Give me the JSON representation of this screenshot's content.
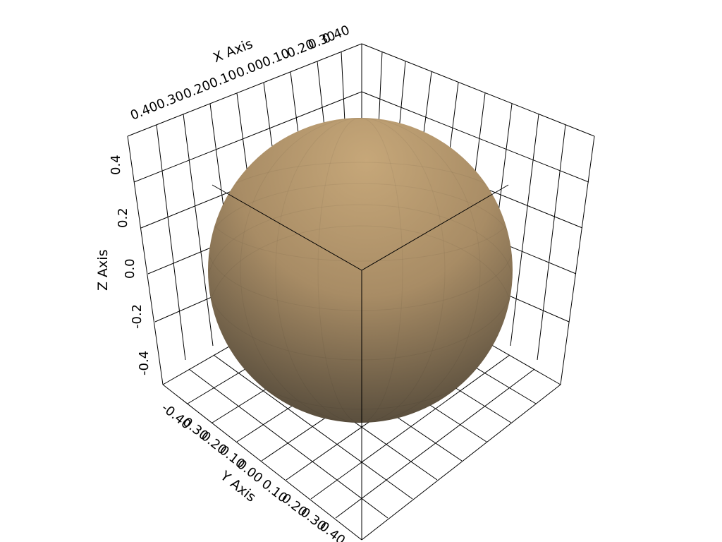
{
  "axes": {
    "x_title": "X Axis",
    "y_title": "Y Axis",
    "z_title": "Z Axis",
    "x_ticks": [
      "0.40",
      "0.30",
      "0.20",
      "0.10",
      "0.00",
      "0.10",
      "0.20",
      "0.30",
      "0.40"
    ],
    "y_ticks": [
      "-0.40",
      "0.30",
      "0.20",
      "0.10",
      "0.00",
      "0.10",
      "0.20",
      "0.30",
      "0.40"
    ],
    "z_ticks": [
      "0.4",
      "0.2",
      "0.0",
      "-0.2",
      "-0.4"
    ]
  },
  "colors": {
    "background": "#ffffff",
    "sphere_light": "#c6a779",
    "sphere_mid": "#a88c65",
    "sphere_dark": "#4d4335",
    "grid": "#000000"
  }
}
